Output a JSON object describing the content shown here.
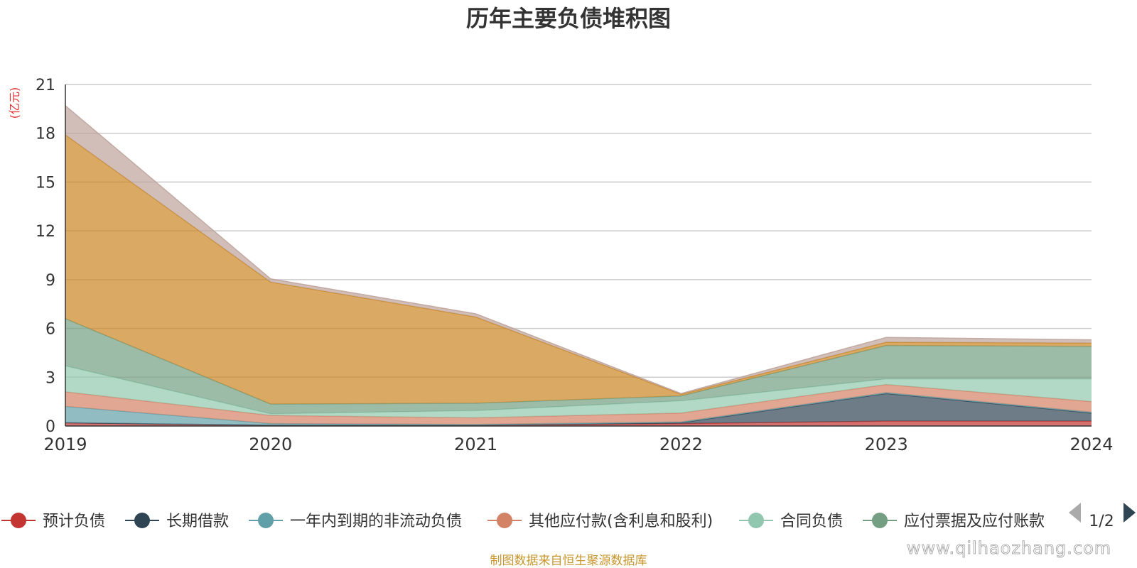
{
  "chart_data": {
    "type": "area",
    "stacked": true,
    "title": "历年主要负债堆积图",
    "unit": "(亿元)",
    "x": [
      "2019",
      "2020",
      "2021",
      "2022",
      "2023",
      "2024"
    ],
    "ylim": [
      0,
      21
    ],
    "yticks": [
      0,
      3,
      6,
      9,
      12,
      15,
      18,
      21
    ],
    "grid": true,
    "legend_position": "bottom",
    "series": [
      {
        "name": "预计负债",
        "color": "#c23531",
        "values": [
          0.2,
          0.05,
          0.05,
          0.15,
          0.3,
          0.3
        ]
      },
      {
        "name": "长期借款",
        "color": "#2f4554",
        "values": [
          0,
          0,
          0,
          0.05,
          1.7,
          0.5
        ]
      },
      {
        "name": "一年内到期的非流动负债",
        "color": "#61a0a8",
        "values": [
          1.0,
          0.1,
          0.05,
          0.05,
          0.05,
          0.05
        ]
      },
      {
        "name": "其他应付款(含利息和股利)",
        "color": "#d48265",
        "values": [
          0.9,
          0.5,
          0.4,
          0.55,
          0.5,
          0.65
        ]
      },
      {
        "name": "合同负债",
        "color": "#91c7ae",
        "values": [
          1.6,
          0.1,
          0.45,
          0.75,
          0.35,
          1.4
        ]
      },
      {
        "name": "应付票据及应付账款",
        "color": "#749f83",
        "values": [
          2.9,
          0.6,
          0.45,
          0.3,
          2.05,
          2.0
        ]
      },
      {
        "color": "#ca8622",
        "values": [
          11.3,
          7.5,
          5.3,
          0.1,
          0.2,
          0.2
        ]
      },
      {
        "color": "#bda29a",
        "values": [
          1.8,
          0.2,
          0.2,
          0.05,
          0.3,
          0.2
        ]
      }
    ]
  },
  "legend": {
    "page_indicator": "1/2"
  },
  "footer": {
    "source": "制图数据来自恒生聚源数据库",
    "watermark": "www.qilhaozhang.com"
  },
  "colors": {
    "unit_label": "#e03030",
    "source_text": "#c9962e",
    "grid": "#cccccc",
    "axis": "#333333"
  }
}
